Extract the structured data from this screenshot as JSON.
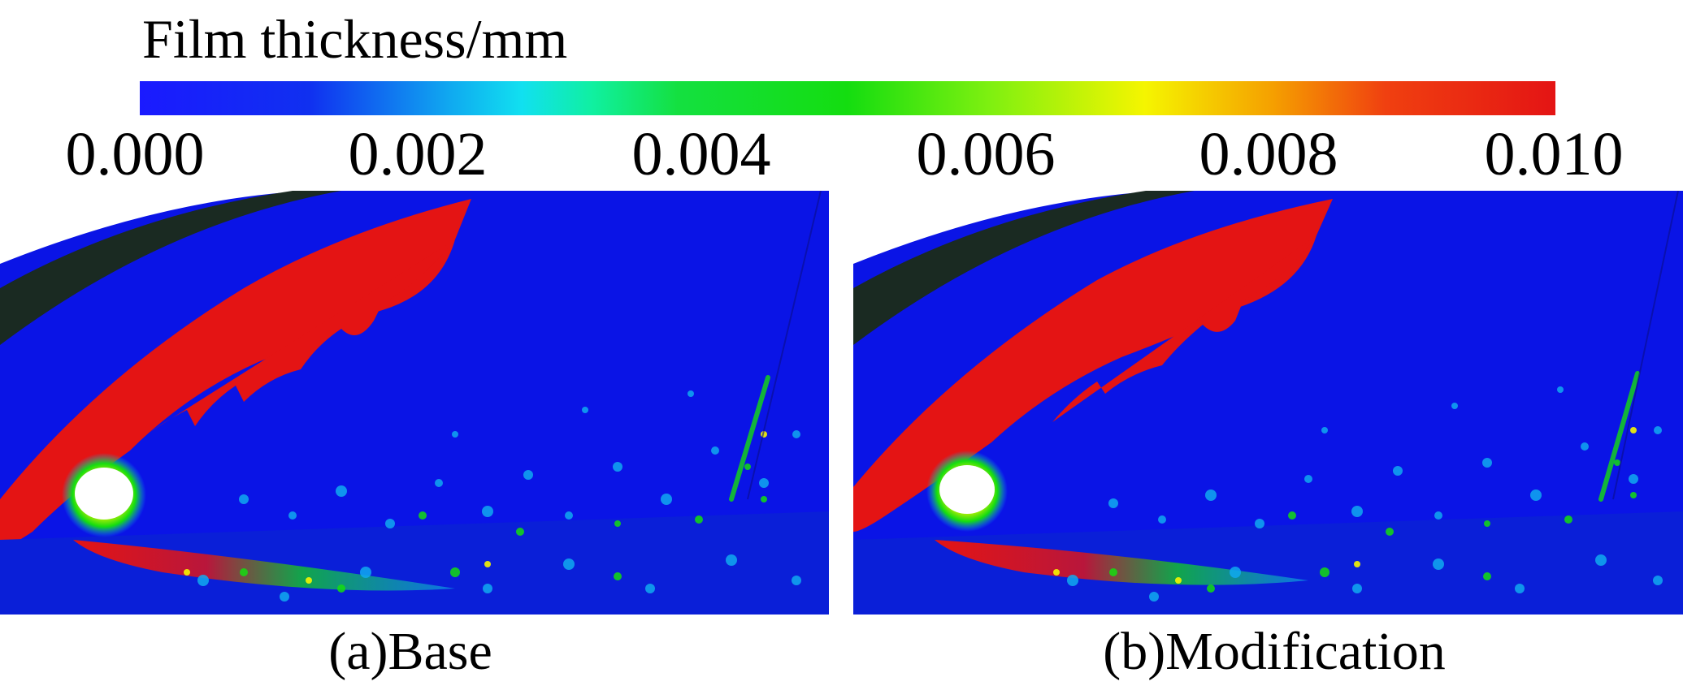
{
  "colorbar": {
    "title": "Film thickness/mm",
    "ticks": [
      "0.000",
      "0.002",
      "0.004",
      "0.006",
      "0.008",
      "0.010"
    ],
    "colors": [
      "#1a1aff",
      "#10aaf0",
      "#14dd10",
      "#f5f500",
      "#f04010",
      "#e41414"
    ]
  },
  "panels": [
    {
      "caption": "(a)Base"
    },
    {
      "caption": "(b)Modification"
    }
  ]
}
